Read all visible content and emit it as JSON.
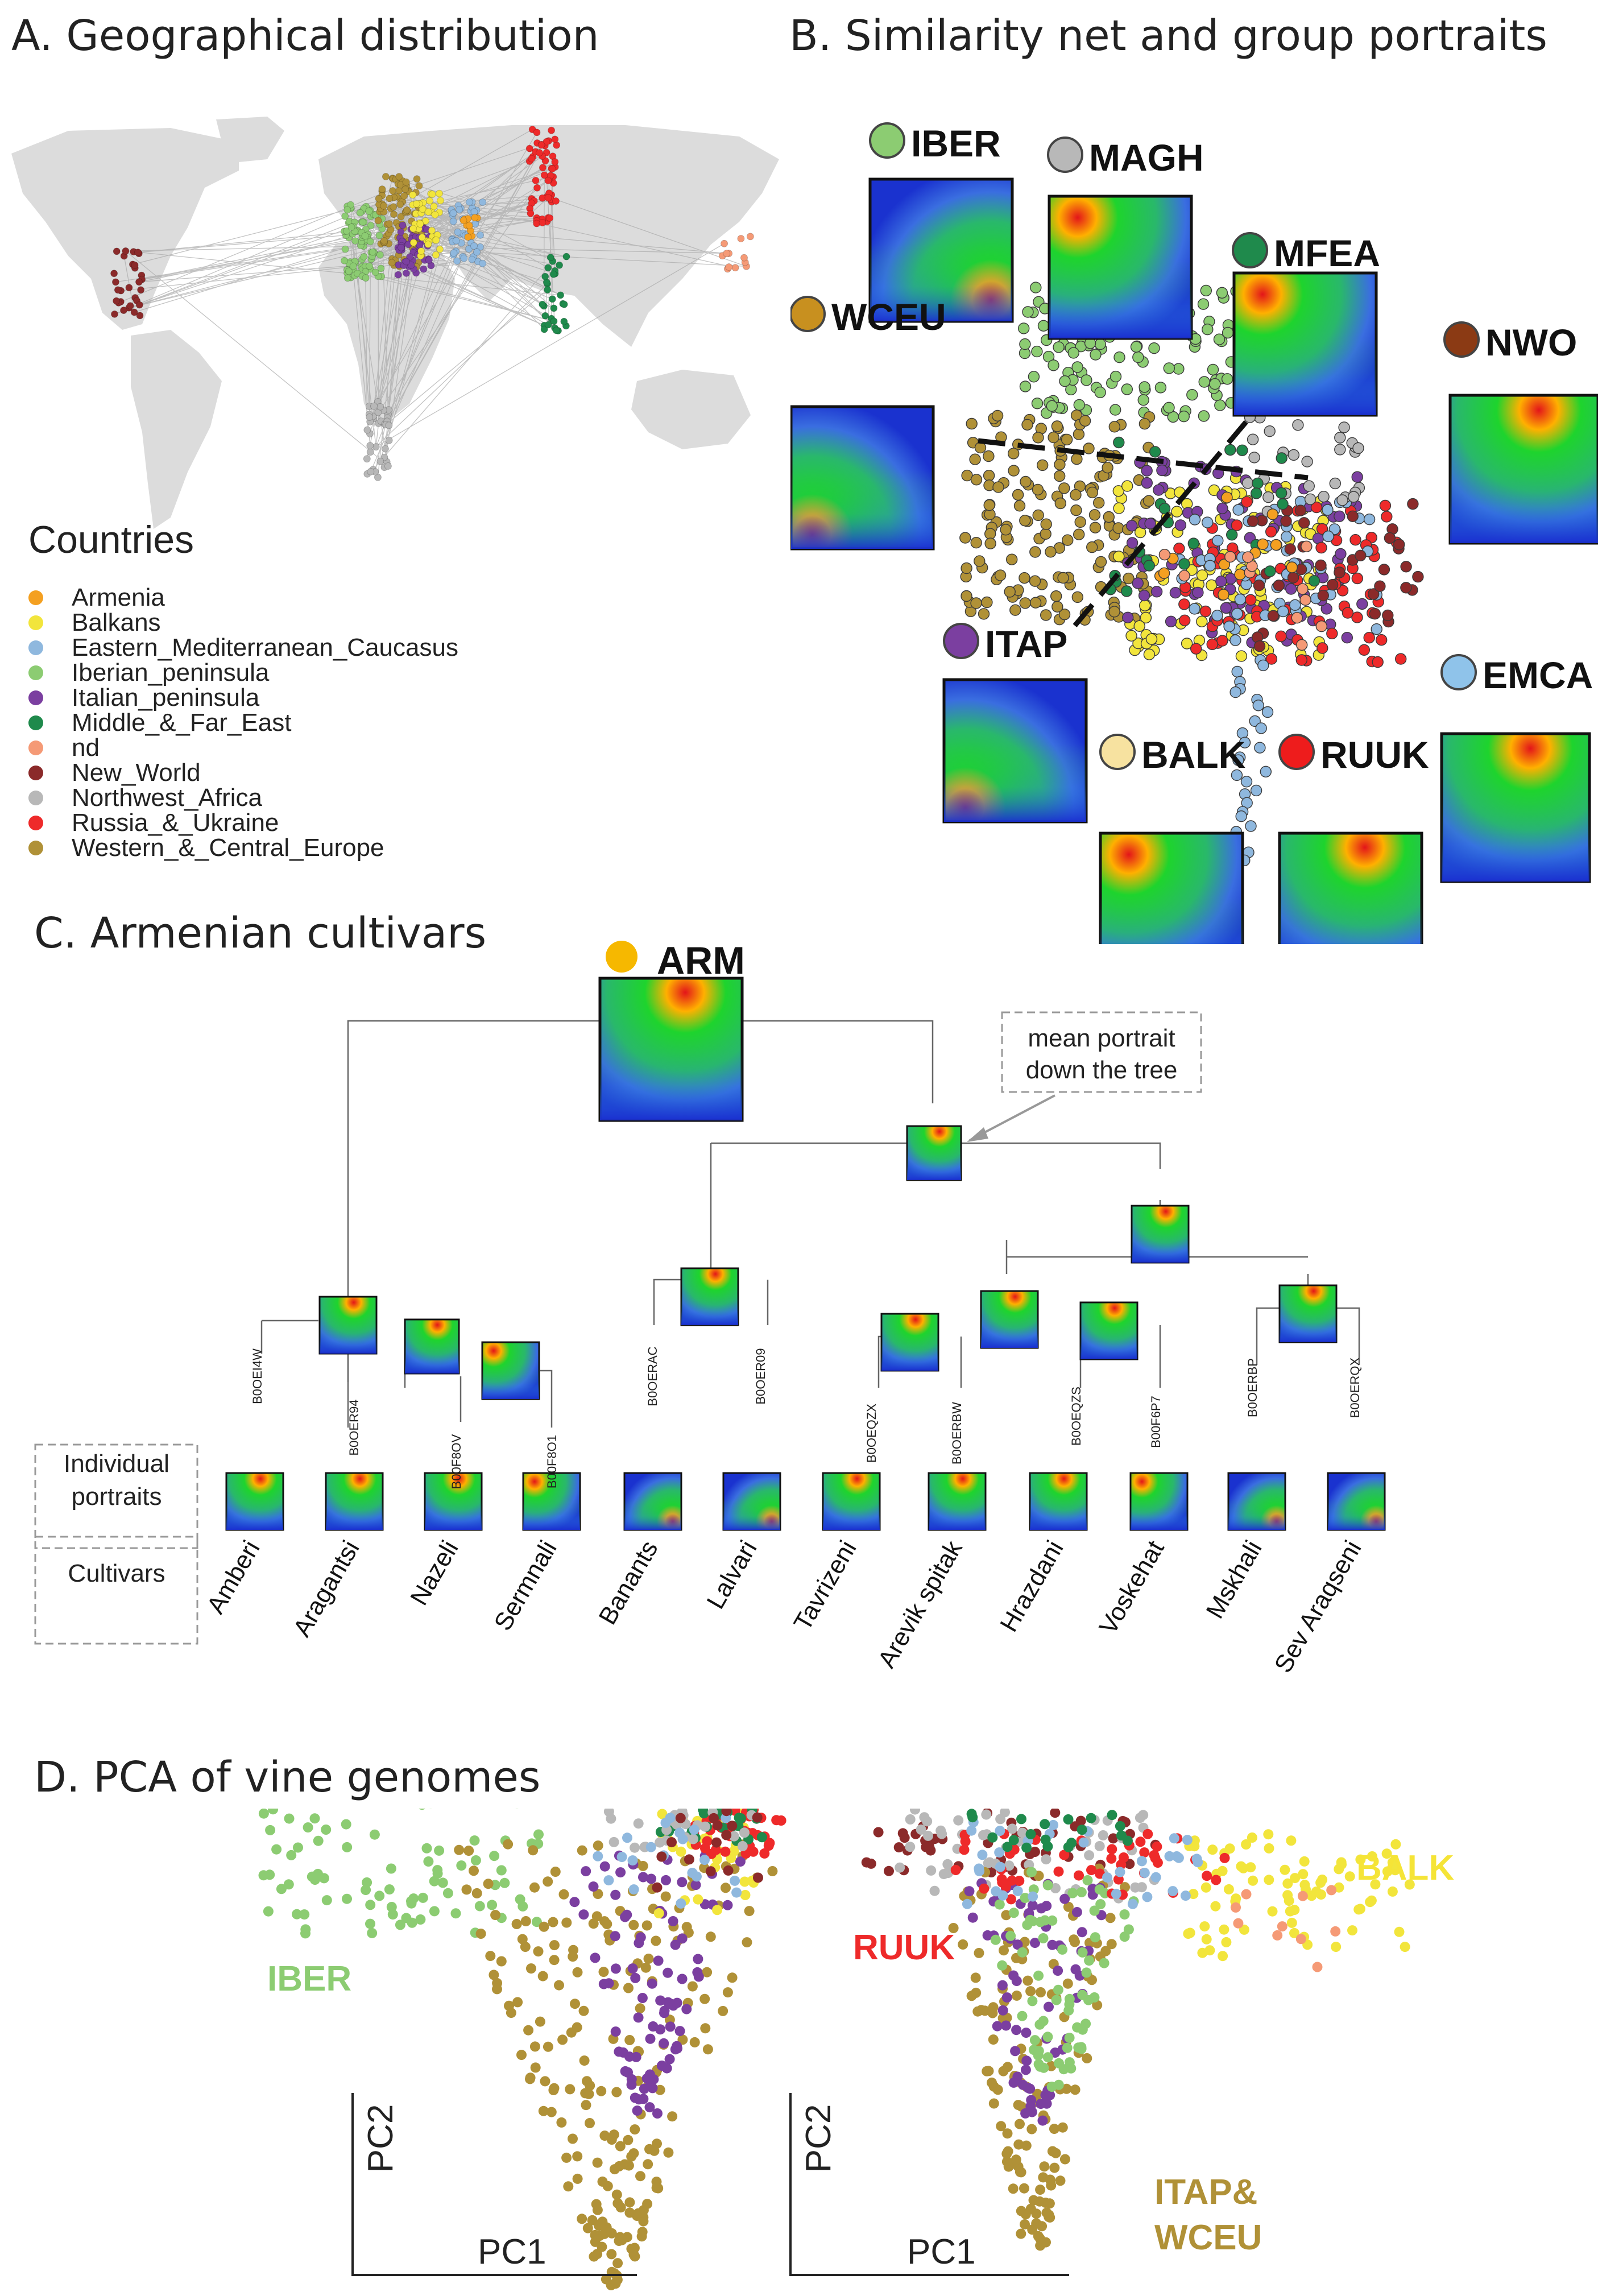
{
  "panels": {
    "a": {
      "title": "A. Geographical distribution"
    },
    "b": {
      "title": "B. Similarity net and group portraits"
    },
    "c": {
      "title": "C. Armenian cultivars"
    },
    "d": {
      "title": "D. PCA of vine genomes"
    }
  },
  "legend": {
    "title": "Countries",
    "items": [
      {
        "label": "Armenia",
        "color": "#f4a021"
      },
      {
        "label": "Balkans",
        "color": "#f2e53c"
      },
      {
        "label": "Eastern_Mediterranean_Caucasus",
        "color": "#8fb8de"
      },
      {
        "label": "Iberian_peninsula",
        "color": "#8ccc72"
      },
      {
        "label": "Italian_peninsula",
        "color": "#7b3fa0"
      },
      {
        "label": "Middle_&_Far_East",
        "color": "#1f8a4c"
      },
      {
        "label": "nd",
        "color": "#f59a76"
      },
      {
        "label": "New_World",
        "color": "#8b2a2a"
      },
      {
        "label": "Northwest_Africa",
        "color": "#b8b8b8"
      },
      {
        "label": "Russia_&_Ukraine",
        "color": "#ee2a2a"
      },
      {
        "label": "Western_&_Central_Europe",
        "color": "#b09137"
      }
    ]
  },
  "group_portraits": [
    {
      "label": "IBER",
      "color": "#8ccc72"
    },
    {
      "label": "MAGH",
      "color": "#b8b8b8"
    },
    {
      "label": "MFEA",
      "color": "#1f8a4c"
    },
    {
      "label": "WCEU",
      "color": "#c8901f"
    },
    {
      "label": "NWO",
      "color": "#8b3a14"
    },
    {
      "label": "ITAP",
      "color": "#7b3fa0"
    },
    {
      "label": "EMCA",
      "color": "#8fc3ea"
    },
    {
      "label": "BALK",
      "color": "#f7e2a0"
    },
    {
      "label": "RUUK",
      "color": "#ee1c1c"
    }
  ],
  "tree": {
    "root_label": "ARM",
    "root_color": "#f6b800",
    "annotation": "mean portrait down the tree",
    "annotation_lines": [
      "mean portrait",
      "down the tree"
    ],
    "node_ids": [
      "B0OEI4W",
      "B0OER94",
      "B00F8OV",
      "B00F8O1",
      "B0OERAC",
      "B0OER09",
      "B0OEQZX",
      "B0OERBW",
      "B0OEQZS",
      "B00F6P7",
      "B0OERBP",
      "B0OERQX"
    ],
    "row_labels": {
      "portraits": "Individual portraits",
      "cultivars": "Cultivars"
    },
    "cultivars": [
      "Amberi",
      "Aragantsi",
      "Nazeli",
      "Sermnali",
      "Banants",
      "Lalvari",
      "Tavrizeni",
      "Arevik spitak",
      "Hrazdani",
      "Voskehat",
      "Mskhali",
      "Sev Araqseni"
    ]
  },
  "chart_data": [
    {
      "type": "scatter",
      "title": "PCA of vine genomes (left)",
      "xlabel": "PC1",
      "ylabel": "PC2",
      "annotations": [
        "IBER"
      ]
    },
    {
      "type": "scatter",
      "title": "PCA of vine genomes (right)",
      "xlabel": "PC1",
      "ylabel": "PC2",
      "annotations": [
        "RUUK",
        "BALK",
        "ITAP&",
        "WCEU"
      ]
    }
  ]
}
